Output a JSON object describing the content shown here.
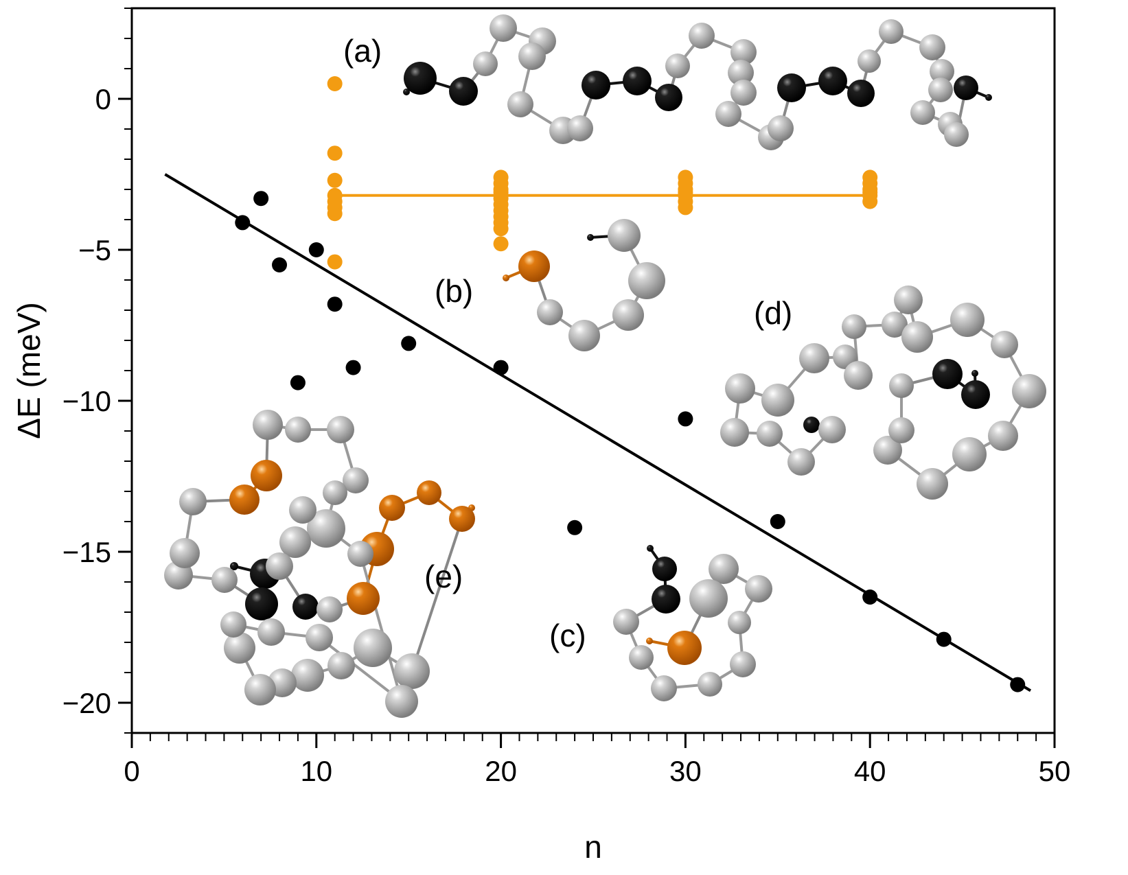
{
  "chart_data": {
    "type": "scatter",
    "xlabel": "n",
    "ylabel": "ΔE (meV)",
    "xlim": [
      0,
      50
    ],
    "ylim": [
      -21,
      3
    ],
    "x_ticks": [
      0,
      10,
      20,
      30,
      40,
      50
    ],
    "x_tick_labels": [
      "0",
      "10",
      "20",
      "30",
      "40",
      "50"
    ],
    "y_ticks": [
      0,
      -5,
      -10,
      -15,
      -20
    ],
    "y_tick_labels": [
      "0",
      "−5",
      "−10",
      "−15",
      "−20"
    ],
    "grid": false,
    "colors": {
      "black_series": "#000000",
      "orange_series": "#f39c12",
      "fit_line": "#000000"
    },
    "series": [
      {
        "name": "black-points",
        "color": "#000000",
        "x": [
          6,
          7,
          8,
          9,
          10,
          11,
          12,
          15,
          20,
          24,
          30,
          35,
          40,
          44,
          48
        ],
        "y": [
          -4.1,
          -3.3,
          -5.5,
          -9.4,
          -5.0,
          -6.8,
          -8.9,
          -8.1,
          -8.9,
          -14.2,
          -10.6,
          -14.0,
          -16.5,
          -17.9,
          -19.4
        ]
      },
      {
        "name": "orange-points",
        "color": "#f39c12",
        "x": [
          11,
          11,
          11,
          11,
          11,
          11,
          11,
          11,
          20,
          20,
          20,
          20,
          20,
          20,
          20,
          20,
          20,
          20,
          20,
          30,
          30,
          30,
          30,
          30,
          30,
          30,
          40,
          40,
          40,
          40,
          40,
          40
        ],
        "y": [
          0.5,
          -1.8,
          -2.7,
          -3.6,
          -3.8,
          -5.4,
          -3.2,
          -3.4,
          -2.6,
          -2.8,
          -3.1,
          -3.3,
          -3.5,
          -3.7,
          -3.9,
          -4.1,
          -4.3,
          -4.8,
          -3.0,
          -2.6,
          -2.8,
          -3.0,
          -3.2,
          -3.4,
          -3.6,
          -3.1,
          -2.6,
          -2.8,
          -3.0,
          -3.2,
          -3.4,
          -3.1
        ]
      }
    ],
    "orange_mean_line": {
      "x": [
        11,
        40
      ],
      "y": [
        -3.2,
        -3.2
      ]
    },
    "fit_line": {
      "x": [
        1.8,
        48.7
      ],
      "y": [
        -2.5,
        -19.6
      ]
    },
    "annotations": [
      "(a)",
      "(b)",
      "(c)",
      "(d)",
      "(e)"
    ]
  }
}
